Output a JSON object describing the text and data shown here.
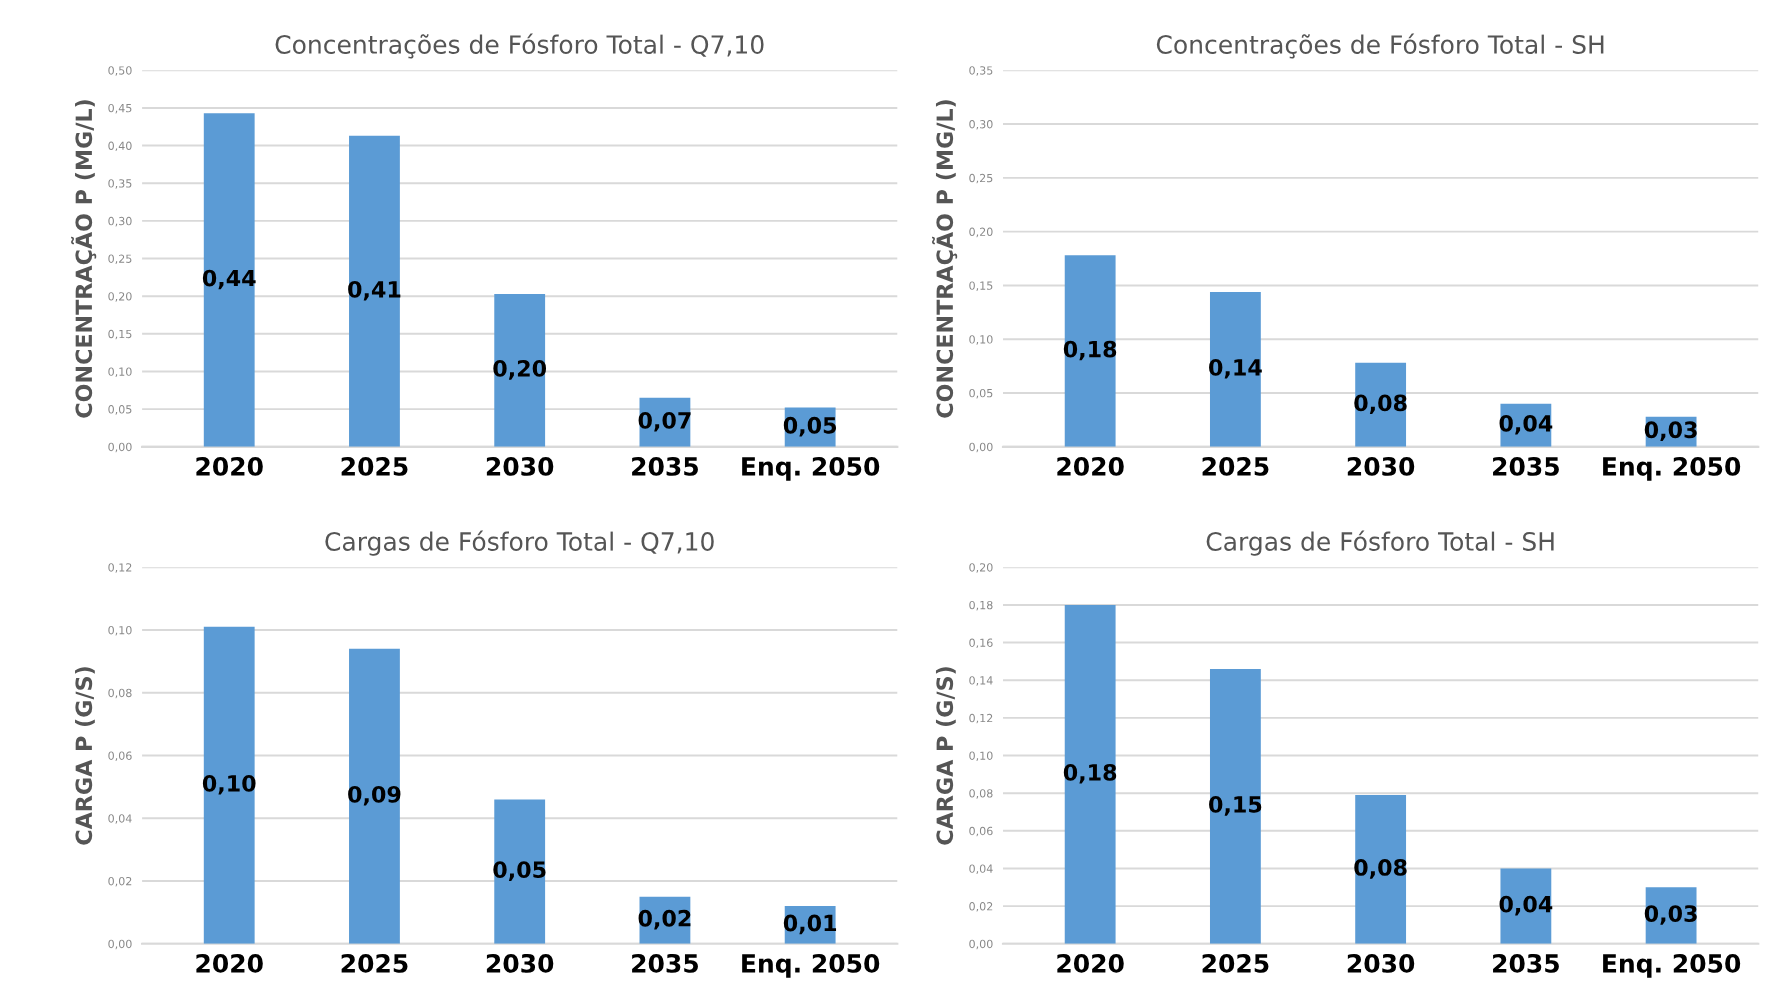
{
  "chart_data": [
    {
      "type": "bar",
      "title": "Concentrações de Fósforo Total - Q7,10",
      "ylabel": "CONCENTRAÇÃO P (MG/L)",
      "categories": [
        "2020",
        "2025",
        "2030",
        "2035",
        "Enq. 2050"
      ],
      "color": "#5b9bd5",
      "values": [
        0.443,
        0.413,
        0.203,
        0.065,
        0.052
      ],
      "value_labels": [
        "0,44",
        "0,41",
        "0,20",
        "0,07",
        "0,05"
      ],
      "ylim": [
        0,
        0.5
      ],
      "yticks": [
        {
          "value": 0,
          "label": "0,00"
        },
        {
          "value": 0.05,
          "label": "0,05"
        },
        {
          "value": 0.1,
          "label": "0,10"
        },
        {
          "value": 0.15,
          "label": "0,15"
        },
        {
          "value": 0.2,
          "label": "0,20"
        },
        {
          "value": 0.25,
          "label": "0,25"
        },
        {
          "value": 0.3,
          "label": "0,30"
        },
        {
          "value": 0.35,
          "label": "0,35"
        },
        {
          "value": 0.4,
          "label": "0,40"
        },
        {
          "value": 0.45,
          "label": "0,45"
        },
        {
          "value": 0.5,
          "label": "0,50"
        }
      ],
      "grid": "y"
    },
    {
      "type": "bar",
      "title": "Concentrações de Fósforo Total - SH",
      "ylabel": "CONCENTRAÇÃO P (MG/L)",
      "categories": [
        "2020",
        "2025",
        "2030",
        "2035",
        "Enq. 2050"
      ],
      "color": "#5b9bd5",
      "values": [
        0.178,
        0.144,
        0.078,
        0.04,
        0.028
      ],
      "value_labels": [
        "0,18",
        "0,14",
        "0,08",
        "0,04",
        "0,03"
      ],
      "ylim": [
        0,
        0.35
      ],
      "yticks": [
        {
          "value": 0,
          "label": "0,00"
        },
        {
          "value": 0.05,
          "label": "0,05"
        },
        {
          "value": 0.1,
          "label": "0,10"
        },
        {
          "value": 0.15,
          "label": "0,15"
        },
        {
          "value": 0.2,
          "label": "0,20"
        },
        {
          "value": 0.25,
          "label": "0,25"
        },
        {
          "value": 0.3,
          "label": "0,30"
        },
        {
          "value": 0.35,
          "label": "0,35"
        }
      ],
      "grid": "y"
    },
    {
      "type": "bar",
      "title": "Cargas de Fósforo Total - Q7,10",
      "ylabel": "CARGA P (G/S)",
      "categories": [
        "2020",
        "2025",
        "2030",
        "2035",
        "Enq. 2050"
      ],
      "color": "#5b9bd5",
      "values": [
        0.101,
        0.094,
        0.046,
        0.015,
        0.012
      ],
      "value_labels": [
        "0,10",
        "0,09",
        "0,05",
        "0,02",
        "0,01"
      ],
      "ylim": [
        0,
        0.12
      ],
      "yticks": [
        {
          "value": 0,
          "label": "0,00"
        },
        {
          "value": 0.02,
          "label": "0,02"
        },
        {
          "value": 0.04,
          "label": "0,04"
        },
        {
          "value": 0.06,
          "label": "0,06"
        },
        {
          "value": 0.08,
          "label": "0,08"
        },
        {
          "value": 0.1,
          "label": "0,10"
        },
        {
          "value": 0.12,
          "label": "0,12"
        }
      ],
      "grid": "y"
    },
    {
      "type": "bar",
      "title": "Cargas de Fósforo Total - SH",
      "ylabel": "CARGA P (G/S)",
      "categories": [
        "2020",
        "2025",
        "2030",
        "2035",
        "Enq. 2050"
      ],
      "color": "#5b9bd5",
      "values": [
        0.18,
        0.146,
        0.079,
        0.04,
        0.03
      ],
      "value_labels": [
        "0,18",
        "0,15",
        "0,08",
        "0,04",
        "0,03"
      ],
      "ylim": [
        0,
        0.2
      ],
      "yticks": [
        {
          "value": 0,
          "label": "0,00"
        },
        {
          "value": 0.02,
          "label": "0,02"
        },
        {
          "value": 0.04,
          "label": "0,04"
        },
        {
          "value": 0.06,
          "label": "0,06"
        },
        {
          "value": 0.08,
          "label": "0,08"
        },
        {
          "value": 0.1,
          "label": "0,10"
        },
        {
          "value": 0.12,
          "label": "0,12"
        },
        {
          "value": 0.14,
          "label": "0,14"
        },
        {
          "value": 0.16,
          "label": "0,16"
        },
        {
          "value": 0.18,
          "label": "0,18"
        },
        {
          "value": 0.2,
          "label": "0,20"
        }
      ],
      "grid": "y"
    }
  ]
}
